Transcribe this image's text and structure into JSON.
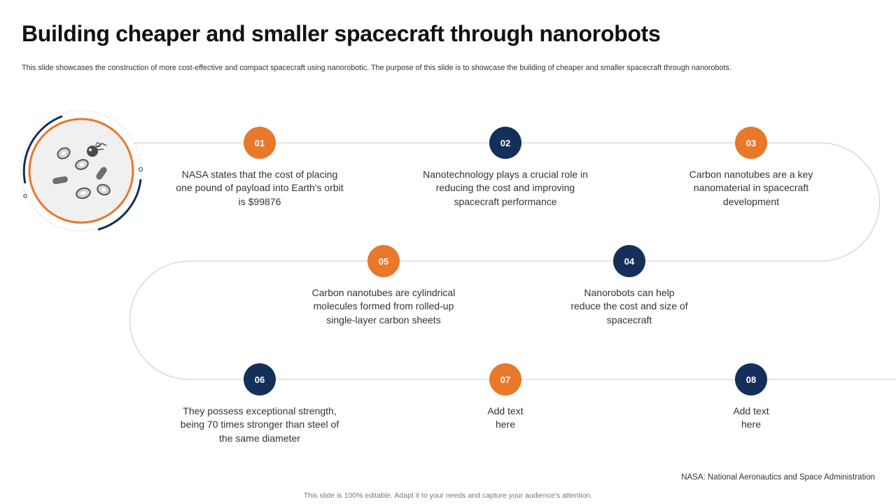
{
  "title": "Building cheaper and smaller spacecraft through nanorobots",
  "subtitle": "This slide showcases the construction of more cost-effective and compact spacecraft using nanorobotic. The purpose of this slide is to showcase the building of cheaper and smaller spacecraft through nanorobots.",
  "colors": {
    "orange": "#E8782A",
    "navy": "#14305A",
    "path_line": "#C8C8C8"
  },
  "illustration": {
    "icon": "nanorobot-cells-icon"
  },
  "steps": [
    {
      "num": "01",
      "text": "NASA states that the cost of placing one pound of payload into Earth's orbit is $99876",
      "color": "orange"
    },
    {
      "num": "02",
      "text": "Nanotechnology plays a crucial role in reducing the cost and improving spacecraft performance",
      "color": "navy"
    },
    {
      "num": "03",
      "text": "Carbon nanotubes are a key nanomaterial in spacecraft development",
      "color": "orange"
    },
    {
      "num": "04",
      "text": "Nanorobots can help reduce the cost and size of spacecraft",
      "color": "navy"
    },
    {
      "num": "05",
      "text": "Carbon nanotubes are cylindrical molecules formed from rolled-up single-layer carbon sheets",
      "color": "orange"
    },
    {
      "num": "06",
      "text": "They possess exceptional strength, being 70 times stronger than steel of the same diameter",
      "color": "navy"
    },
    {
      "num": "07",
      "text": "Add text here",
      "color": "orange"
    },
    {
      "num": "08",
      "text": "Add text here",
      "color": "navy"
    }
  ],
  "footnote": "NASA: National Aeronautics and Space Administration",
  "footer": "This slide is 100% editable. Adapt it to your needs and capture your audience's attention."
}
